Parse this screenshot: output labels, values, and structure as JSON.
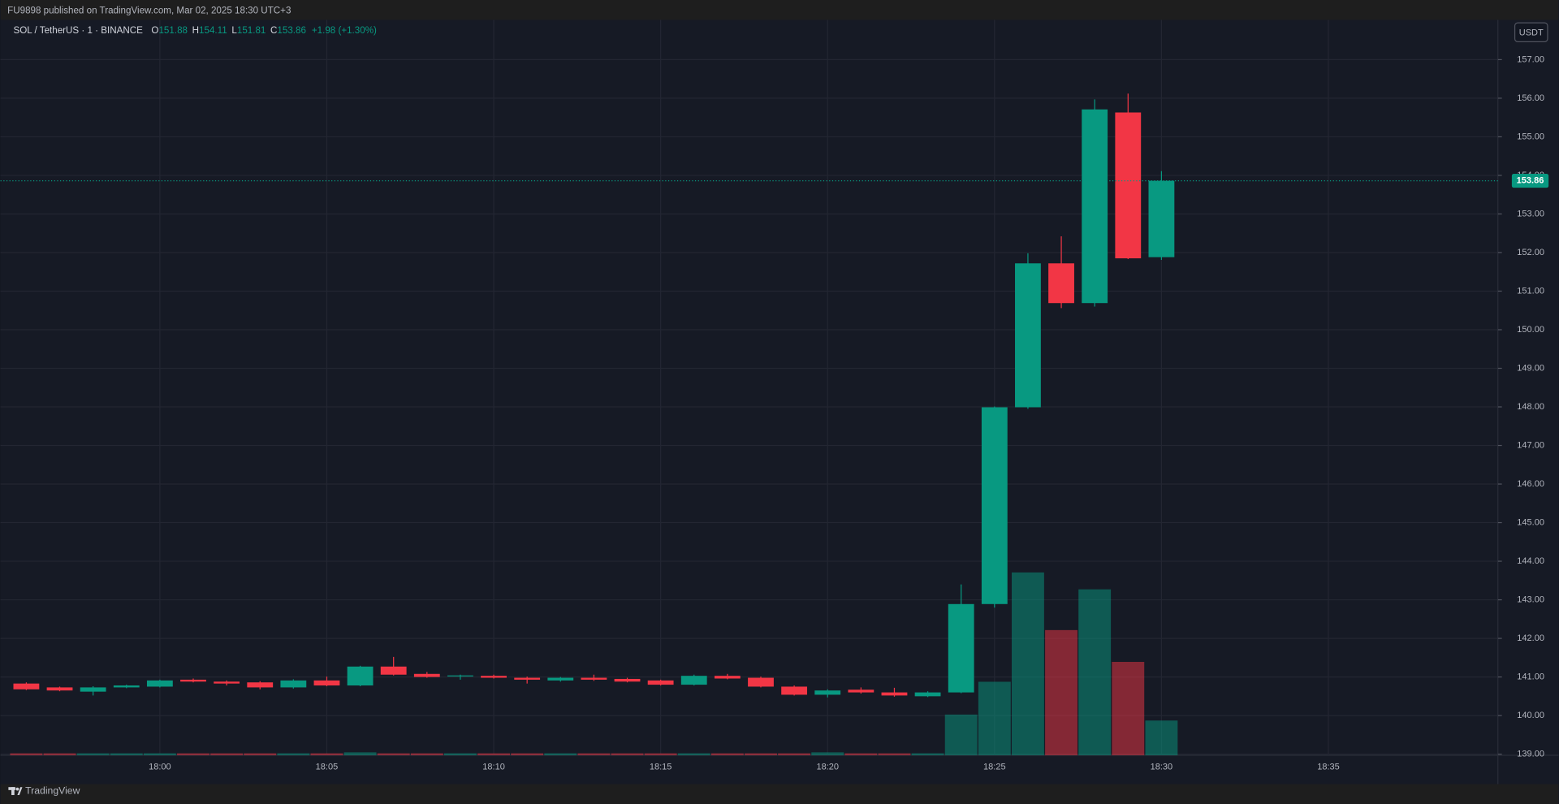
{
  "header": {
    "text": "FU9898 published on TradingView.com, Mar 02, 2025 18:30 UTC+3"
  },
  "toolbar": {
    "currency": "USDT"
  },
  "footer": {
    "brand": "TradingView"
  },
  "chart_data": {
    "type": "candlestick",
    "title": "SOL / TetherUS · 1 · BINANCE",
    "ohlc_labels": [
      "O",
      "H",
      "L",
      "C"
    ],
    "change": "+1.98 (+1.30%)",
    "up_color": "#089981",
    "down_color": "#f23645",
    "grid": true,
    "x": [
      "17:56",
      "17:57",
      "17:58",
      "17:59",
      "18:00",
      "18:01",
      "18:02",
      "18:03",
      "18:04",
      "18:05",
      "18:06",
      "18:07",
      "18:08",
      "18:09",
      "18:10",
      "18:11",
      "18:12",
      "18:13",
      "18:14",
      "18:15",
      "18:16",
      "18:17",
      "18:18",
      "18:19",
      "18:20",
      "18:21",
      "18:22",
      "18:23",
      "18:24",
      "18:25",
      "18:26",
      "18:27",
      "18:28",
      "18:29",
      "18:30"
    ],
    "open": [
      140.83,
      140.73,
      140.62,
      140.73,
      140.75,
      140.93,
      140.88,
      140.86,
      140.73,
      140.91,
      140.78,
      141.27,
      141.08,
      141.02,
      141.03,
      140.98,
      140.91,
      140.98,
      140.95,
      140.91,
      140.8,
      141.03,
      140.98,
      140.75,
      140.54,
      140.67,
      140.6,
      140.5,
      140.6,
      142.89,
      147.99,
      151.72,
      150.69,
      155.63,
      151.88
    ],
    "high": [
      140.86,
      140.75,
      140.76,
      140.8,
      140.93,
      140.96,
      140.91,
      140.89,
      140.94,
      141.01,
      141.29,
      141.52,
      141.13,
      141.06,
      141.06,
      141.01,
      141.0,
      141.06,
      140.98,
      140.93,
      141.06,
      141.08,
      141.01,
      140.78,
      140.68,
      140.73,
      140.72,
      140.63,
      143.4,
      148.01,
      151.98,
      152.42,
      155.97,
      156.12,
      154.11
    ],
    "low": [
      140.66,
      140.63,
      140.52,
      140.71,
      140.73,
      140.86,
      140.78,
      140.68,
      140.7,
      140.76,
      140.76,
      141.04,
      140.98,
      140.93,
      140.96,
      140.83,
      140.88,
      140.9,
      140.86,
      140.78,
      140.78,
      140.94,
      140.73,
      140.52,
      140.47,
      140.57,
      140.49,
      140.48,
      140.58,
      142.8,
      147.95,
      150.56,
      150.6,
      151.83,
      151.81
    ],
    "close": [
      140.68,
      140.65,
      140.73,
      140.78,
      140.91,
      140.88,
      140.83,
      140.73,
      140.91,
      140.78,
      141.27,
      141.06,
      141.0,
      141.04,
      140.98,
      140.93,
      140.98,
      140.93,
      140.88,
      140.8,
      141.03,
      140.96,
      140.75,
      140.54,
      140.65,
      140.6,
      140.52,
      140.6,
      142.89,
      147.99,
      151.72,
      150.69,
      155.71,
      151.85,
      153.86
    ],
    "volume": [
      2,
      2,
      2,
      2,
      2,
      2,
      2,
      2,
      2,
      2,
      3,
      2,
      2,
      2,
      2,
      2,
      2,
      2,
      2,
      2,
      2,
      2,
      2,
      2,
      3,
      2,
      2,
      2,
      41,
      74,
      184,
      126,
      167,
      94,
      35
    ],
    "xticks": [
      "18:00",
      "18:05",
      "18:10",
      "18:15",
      "18:20",
      "18:25",
      "18:30",
      "18:35"
    ],
    "ylim": [
      138.97,
      158.03
    ],
    "yticks": [
      {
        "value": 139,
        "label": "139.00"
      },
      {
        "value": 140,
        "label": "140.00"
      },
      {
        "value": 141,
        "label": "141.00"
      },
      {
        "value": 142,
        "label": "142.00"
      },
      {
        "value": 143,
        "label": "143.00"
      },
      {
        "value": 144,
        "label": "144.00"
      },
      {
        "value": 145,
        "label": "145.00"
      },
      {
        "value": 146,
        "label": "146.00"
      },
      {
        "value": 147,
        "label": "147.00"
      },
      {
        "value": 148,
        "label": "148.00"
      },
      {
        "value": 149,
        "label": "149.00"
      },
      {
        "value": 150,
        "label": "150.00"
      },
      {
        "value": 151,
        "label": "151.00"
      },
      {
        "value": 152,
        "label": "152.00"
      },
      {
        "value": 153,
        "label": "153.00"
      },
      {
        "value": 154,
        "label": "154.00"
      },
      {
        "value": 155,
        "label": "155.00"
      },
      {
        "value": 156,
        "label": "156.00"
      },
      {
        "value": 157,
        "label": "157.00"
      }
    ]
  }
}
